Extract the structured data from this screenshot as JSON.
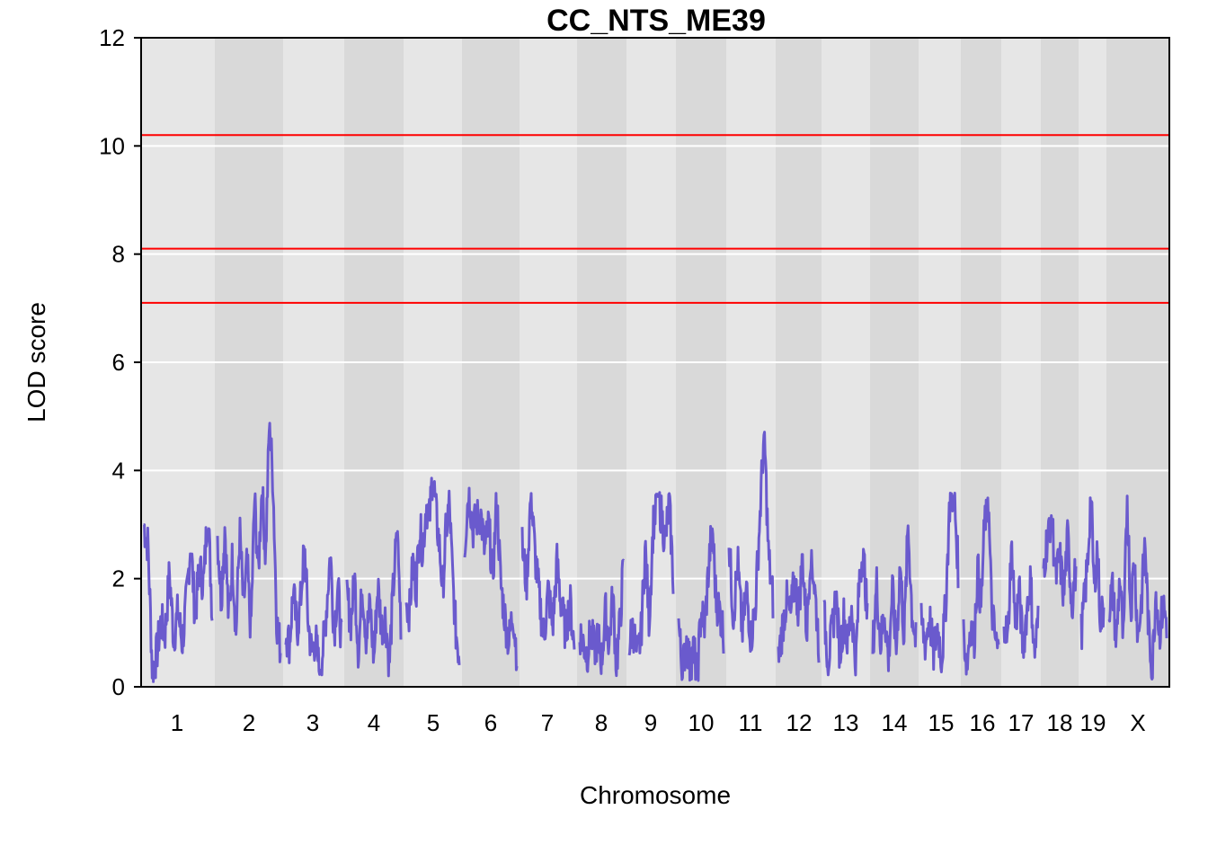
{
  "chart_data": {
    "type": "line",
    "title": "CC_NTS_ME39",
    "xlabel": "Chromosome",
    "ylabel": "LOD score",
    "ylim": [
      0,
      12
    ],
    "yticks": [
      0,
      2,
      4,
      6,
      8,
      10,
      12
    ],
    "grid": true,
    "thresholds": [
      10.2,
      8.1,
      7.1
    ],
    "colors": {
      "line": "#6a5acd",
      "threshold": "#ff0000",
      "band_light": "#e6e6e6",
      "band_dark": "#d9d9d9",
      "grid": "#ffffff"
    },
    "chromosomes": [
      {
        "label": "1",
        "peak": 3.4,
        "profile": [
          3.0,
          2.6,
          0.3,
          0.6,
          1.2,
          1.0,
          2.1,
          0.9,
          1.4,
          0.8,
          1.6,
          2.7,
          1.3,
          2.2,
          1.9,
          3.3,
          1.4
        ]
      },
      {
        "label": "2",
        "peak": 4.9,
        "profile": [
          2.8,
          1.6,
          3.0,
          1.2,
          2.4,
          1.0,
          2.9,
          1.5,
          2.3,
          1.0,
          3.5,
          2.1,
          3.7,
          2.4,
          4.9,
          3.8,
          1.2,
          0.7
        ]
      },
      {
        "label": "3",
        "peak": 2.7,
        "profile": [
          1.0,
          0.8,
          1.8,
          1.0,
          1.6,
          2.7,
          1.2,
          0.6,
          0.9,
          0.3,
          0.7,
          1.5,
          2.5,
          1.0,
          1.9,
          0.8
        ]
      },
      {
        "label": "4",
        "peak": 2.9,
        "profile": [
          1.7,
          1.2,
          2.0,
          0.6,
          1.9,
          0.9,
          1.5,
          0.5,
          1.9,
          1.1,
          1.3,
          0.4,
          1.8,
          2.9,
          1.2
        ]
      },
      {
        "label": "5",
        "peak": 4.0,
        "profile": [
          1.6,
          1.4,
          2.3,
          1.8,
          3.0,
          2.5,
          3.4,
          3.1,
          4.0,
          3.2,
          2.6,
          1.8,
          2.9,
          3.4,
          2.0,
          1.0,
          0.6
        ]
      },
      {
        "label": "6",
        "peak": 3.7,
        "profile": [
          2.6,
          3.7,
          2.9,
          3.1,
          3.2,
          2.5,
          3.0,
          2.0,
          3.5,
          1.9,
          1.3,
          0.8,
          1.4,
          0.6
        ]
      },
      {
        "label": "7",
        "peak": 3.6,
        "profile": [
          2.6,
          1.9,
          3.6,
          2.4,
          1.6,
          0.9,
          1.8,
          1.1,
          2.3,
          1.5,
          1.0,
          1.6,
          0.7
        ]
      },
      {
        "label": "8",
        "peak": 2.4,
        "profile": [
          1.0,
          0.8,
          0.6,
          1.0,
          0.7,
          0.9,
          0.5,
          1.4,
          0.8,
          1.7,
          0.4,
          1.2,
          2.4
        ]
      },
      {
        "label": "9",
        "peak": 3.6,
        "profile": [
          0.8,
          1.1,
          0.5,
          1.0,
          2.6,
          1.2,
          3.0,
          3.5,
          3.2,
          2.7,
          3.4,
          2.0
        ]
      },
      {
        "label": "10",
        "peak": 3.0,
        "profile": [
          1.2,
          0.2,
          0.9,
          0.4,
          0.7,
          0.2,
          1.4,
          1.1,
          2.2,
          3.0,
          1.6,
          1.4,
          1.0
        ]
      },
      {
        "label": "11",
        "peak": 4.8,
        "profile": [
          2.7,
          1.3,
          2.3,
          1.0,
          1.8,
          0.9,
          1.5,
          3.1,
          4.8,
          2.4,
          1.6
        ]
      },
      {
        "label": "12",
        "peak": 2.6,
        "profile": [
          0.5,
          1.1,
          1.6,
          1.3,
          2.0,
          1.4,
          2.4,
          1.0,
          2.6,
          1.8,
          0.8
        ]
      },
      {
        "label": "13",
        "peak": 2.6,
        "profile": [
          1.3,
          0.5,
          1.0,
          1.7,
          0.6,
          1.3,
          0.8,
          1.5,
          0.4,
          2.0,
          2.6,
          1.2
        ]
      },
      {
        "label": "14",
        "peak": 3.0,
        "profile": [
          0.7,
          1.9,
          0.8,
          1.4,
          0.5,
          1.8,
          0.7,
          2.3,
          0.9,
          3.0,
          1.4,
          0.8
        ]
      },
      {
        "label": "15",
        "peak": 3.6,
        "profile": [
          1.2,
          0.8,
          1.3,
          0.6,
          1.1,
          0.5,
          1.6,
          3.5,
          3.6,
          2.2
        ]
      },
      {
        "label": "16",
        "peak": 3.6,
        "profile": [
          1.0,
          0.4,
          1.2,
          0.8,
          2.2,
          1.5,
          3.0,
          3.6,
          1.5,
          0.9,
          0.6
        ]
      },
      {
        "label": "17",
        "peak": 2.8,
        "profile": [
          1.3,
          0.8,
          2.8,
          1.1,
          1.8,
          0.7,
          1.4,
          2.0,
          0.6,
          1.2
        ]
      },
      {
        "label": "18",
        "peak": 3.2,
        "profile": [
          2.2,
          2.8,
          3.2,
          2.0,
          2.4,
          1.7,
          2.8,
          1.5,
          2.2
        ]
      },
      {
        "label": "19",
        "peak": 3.6,
        "profile": [
          1.0,
          1.6,
          2.3,
          3.6,
          1.8,
          2.6,
          1.2,
          1.5
        ]
      },
      {
        "label": "X",
        "peak": 3.6,
        "profile": [
          1.5,
          1.8,
          0.8,
          2.1,
          0.7,
          3.6,
          1.4,
          2.4,
          0.9,
          1.6,
          2.7,
          1.0,
          0.3,
          1.8,
          1.0,
          1.5,
          1.2
        ]
      }
    ]
  }
}
